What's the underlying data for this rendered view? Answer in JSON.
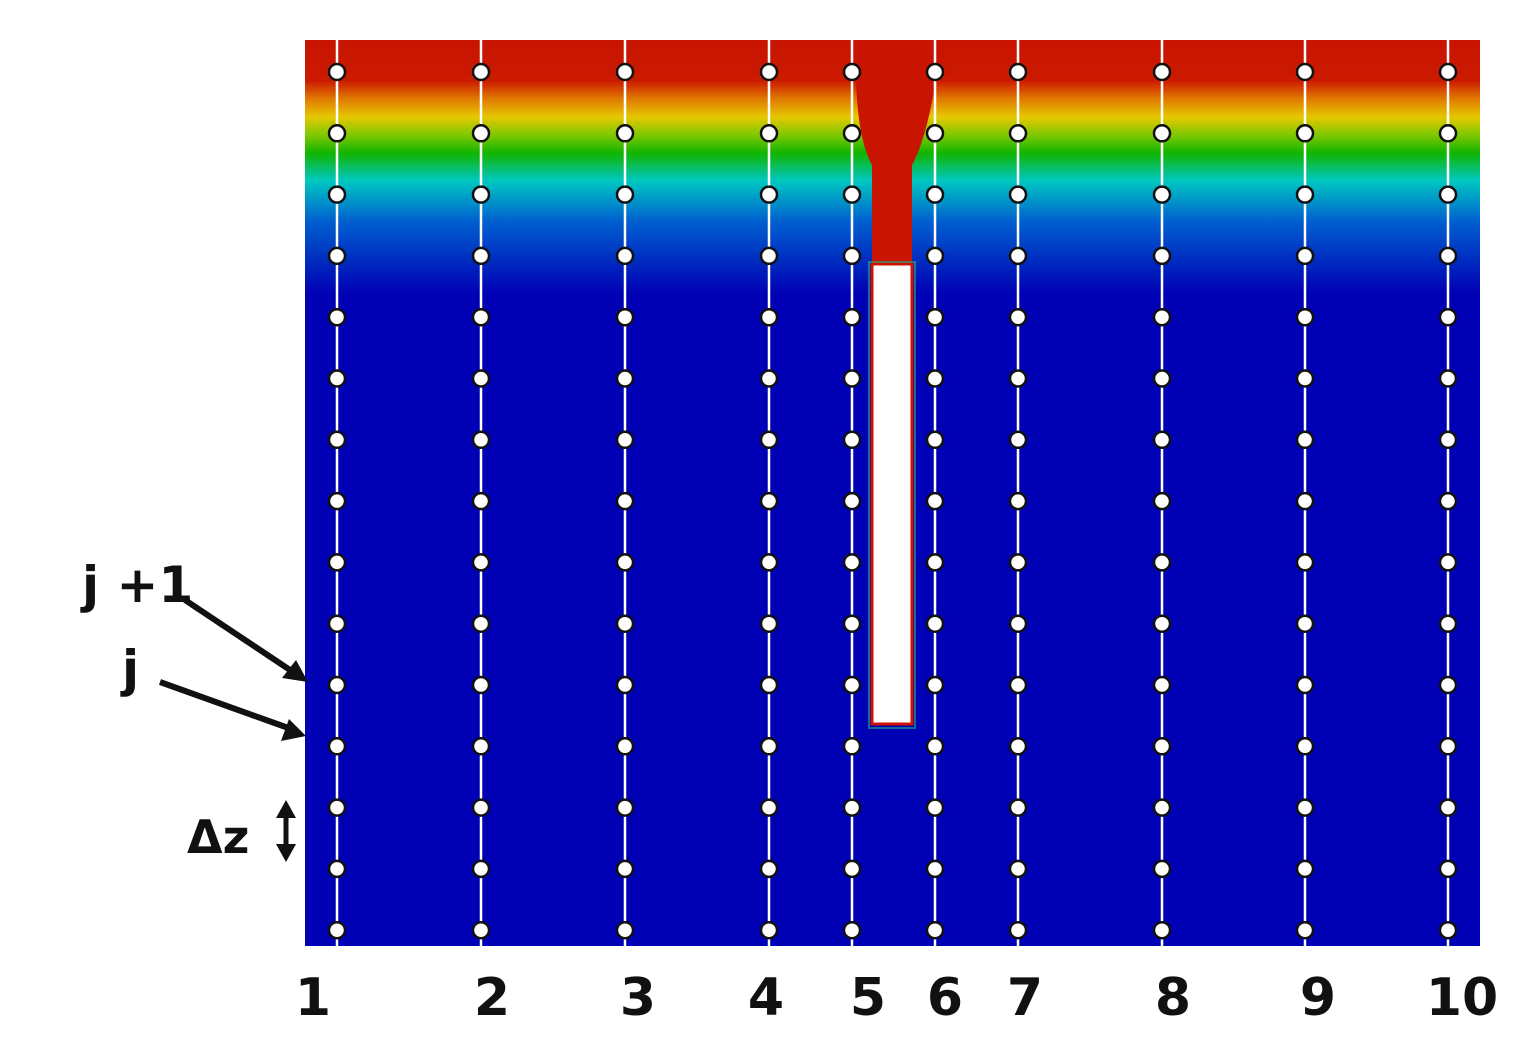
{
  "column_labels": [
    "1",
    "2",
    "3",
    "4",
    "5",
    "6",
    "7",
    "8",
    "9",
    "10"
  ],
  "node_rows_per_column": 15,
  "annotations": {
    "upper_index": "j +1",
    "lower_index": "j",
    "spacing": "Δz"
  },
  "colors": {
    "hot": "#c81400",
    "warm": "#e6c800",
    "mid": "#10b400",
    "cool": "#00c8c0",
    "cold": "#0000b4",
    "grid_line": "#ffffff",
    "node_fill": "#ffffff",
    "node_stroke": "#111111",
    "inclusion": "#ffffff",
    "inclusion_edge": "#d01000"
  }
}
